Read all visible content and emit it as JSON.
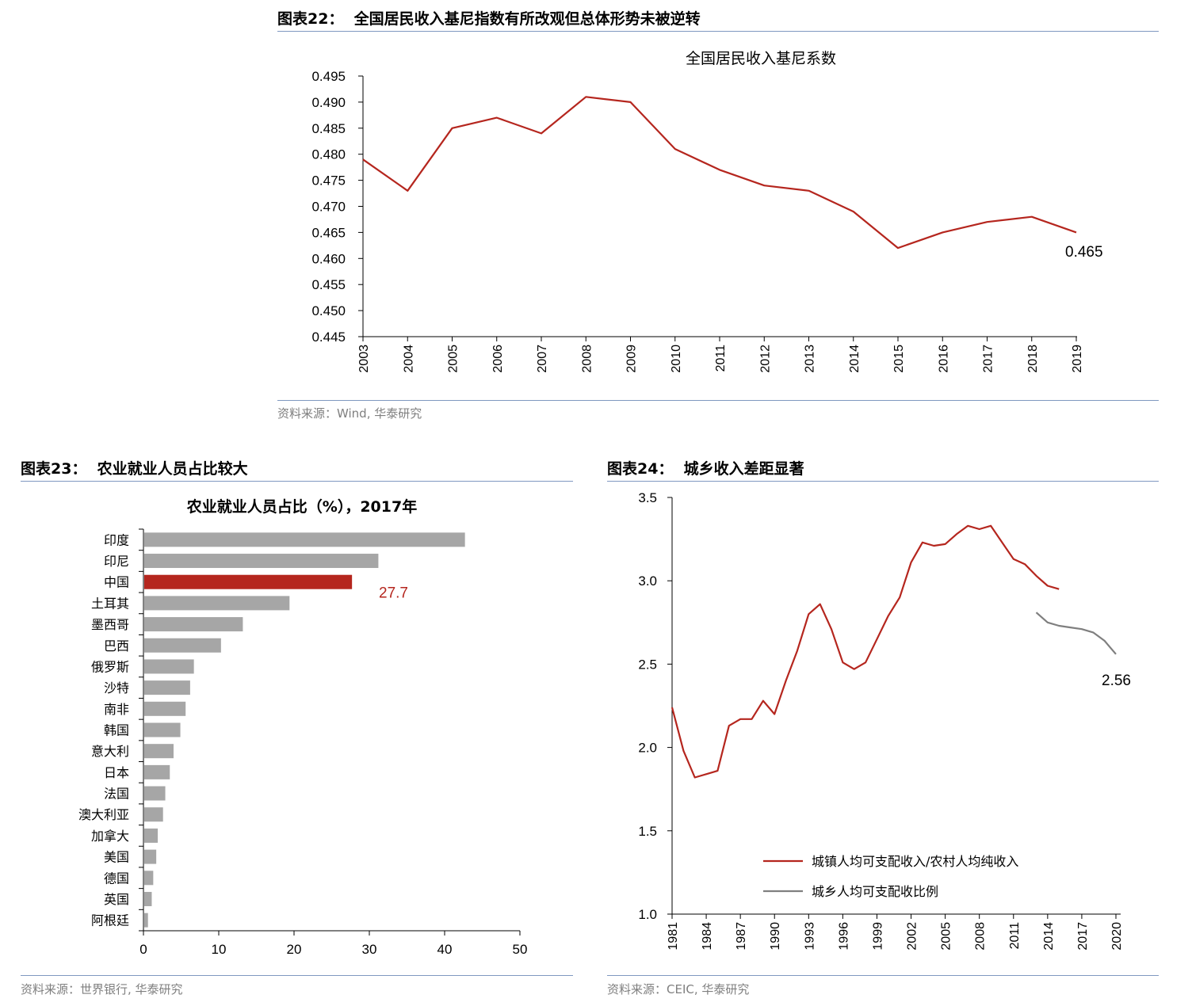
{
  "figures": {
    "fig22": {
      "caption": "图表22：  全国居民收入基尼指数有所改观但总体形势未被逆转",
      "source": "资料来源：Wind, 华泰研究"
    },
    "fig23": {
      "caption": "图表23：  农业就业人员占比较大",
      "source": "资料来源：世界银行, 华泰研究"
    },
    "fig24": {
      "caption": "图表24：  城乡收入差距显著",
      "source": "资料来源：CEIC, 华泰研究"
    }
  },
  "chart_data": [
    {
      "type": "line",
      "title": "全国居民收入基尼系数",
      "x": [
        "2003",
        "2004",
        "2005",
        "2006",
        "2007",
        "2008",
        "2009",
        "2010",
        "2011",
        "2012",
        "2013",
        "2014",
        "2015",
        "2016",
        "2017",
        "2018",
        "2019"
      ],
      "series": [
        {
          "values": [
            0.479,
            0.473,
            0.485,
            0.487,
            0.484,
            0.491,
            0.49,
            0.481,
            0.477,
            0.474,
            0.473,
            0.469,
            0.462,
            0.465,
            0.467,
            0.468,
            0.465
          ],
          "color": "#b5261e"
        }
      ],
      "yticks": [
        "0.445",
        "0.450",
        "0.455",
        "0.460",
        "0.465",
        "0.470",
        "0.475",
        "0.480",
        "0.485",
        "0.490",
        "0.495"
      ],
      "ylim": [
        0.445,
        0.495
      ],
      "end_label": "0.465",
      "grid": false
    },
    {
      "type": "bar",
      "orientation": "horizontal",
      "title": "农业就业人员占比（%），2017年",
      "categories": [
        "印度",
        "印尼",
        "中国",
        "土耳其",
        "墨西哥",
        "巴西",
        "俄罗斯",
        "沙特",
        "南非",
        "韩国",
        "意大利",
        "日本",
        "法国",
        "澳大利亚",
        "加拿大",
        "美国",
        "德国",
        "英国",
        "阿根廷"
      ],
      "values": [
        42.7,
        31.2,
        27.7,
        19.4,
        13.2,
        10.3,
        6.7,
        6.2,
        5.6,
        4.9,
        4.0,
        3.5,
        2.9,
        2.6,
        1.9,
        1.7,
        1.3,
        1.1,
        0.6
      ],
      "highlight_index": 2,
      "highlight_label": "27.7",
      "colors": {
        "default": "#a6a6a6",
        "highlight": "#b5261e"
      },
      "xticks": [
        "0",
        "10",
        "20",
        "30",
        "40",
        "50"
      ],
      "xlim": [
        0,
        50
      ],
      "grid": false
    },
    {
      "type": "line",
      "x_range": [
        1981,
        2020
      ],
      "xticks": [
        "1981",
        "1984",
        "1987",
        "1990",
        "1993",
        "1996",
        "1999",
        "2002",
        "2005",
        "2008",
        "2011",
        "2014",
        "2017",
        "2020"
      ],
      "yticks": [
        "1.0",
        "1.5",
        "2.0",
        "2.5",
        "3.0",
        "3.5"
      ],
      "ylim": [
        1.0,
        3.5
      ],
      "series": [
        {
          "name": "城镇人均可支配收入/农村人均纯收入",
          "color": "#b5261e",
          "x": [
            1981,
            1982,
            1983,
            1984,
            1985,
            1986,
            1987,
            1988,
            1989,
            1990,
            1991,
            1992,
            1993,
            1994,
            1995,
            1996,
            1997,
            1998,
            1999,
            2000,
            2001,
            2002,
            2003,
            2004,
            2005,
            2006,
            2007,
            2008,
            2009,
            2010,
            2011,
            2012,
            2013,
            2014,
            2015
          ],
          "values": [
            2.24,
            1.98,
            1.82,
            1.84,
            1.86,
            2.13,
            2.17,
            2.17,
            2.28,
            2.2,
            2.4,
            2.58,
            2.8,
            2.86,
            2.71,
            2.51,
            2.47,
            2.51,
            2.65,
            2.79,
            2.9,
            3.11,
            3.23,
            3.21,
            3.22,
            3.28,
            3.33,
            3.31,
            3.33,
            3.23,
            3.13,
            3.1,
            3.03,
            2.97,
            2.95
          ]
        },
        {
          "name": "城乡人均可支配收比例",
          "color": "#7f7f7f",
          "x": [
            2013,
            2014,
            2015,
            2016,
            2017,
            2018,
            2019,
            2020
          ],
          "values": [
            2.81,
            2.75,
            2.73,
            2.72,
            2.71,
            2.69,
            2.64,
            2.56
          ]
        }
      ],
      "end_label": "2.56",
      "legend": "bottom-center",
      "grid": false
    }
  ]
}
